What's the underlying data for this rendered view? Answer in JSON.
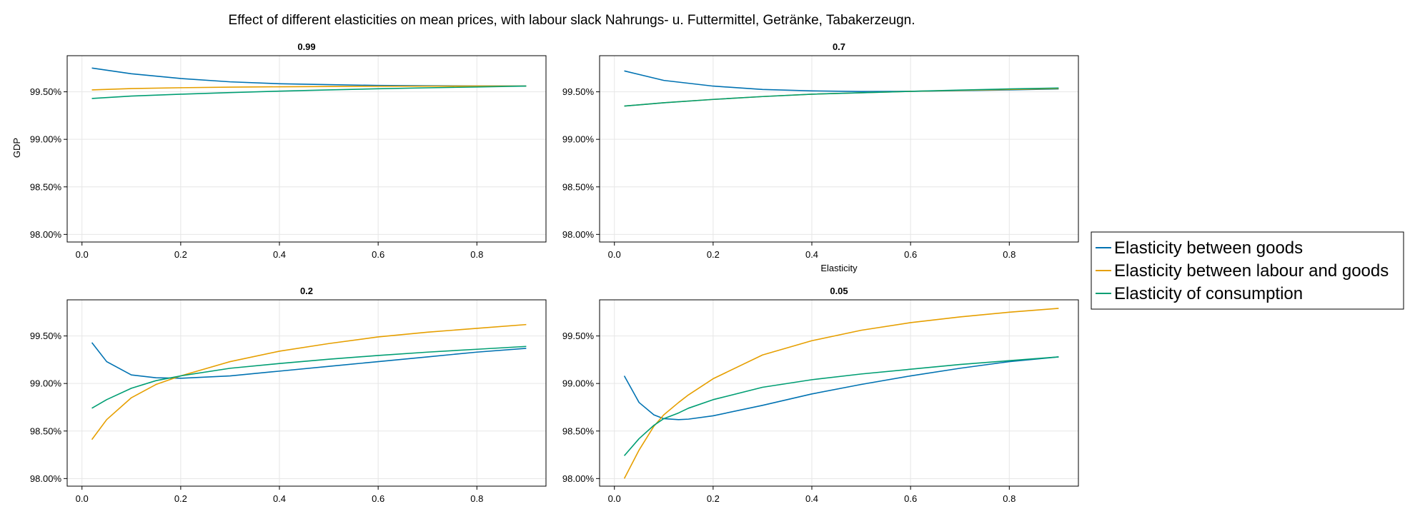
{
  "title": "Effect of different elasticities on mean prices, with labour slack Nahrungs- u. Futtermittel, Getränke, Tabakerzeugn.",
  "xlabel": "Elasticity",
  "ylabel": "GDP",
  "colors": {
    "goods": "#0072B2",
    "labour": "#E69F00",
    "consumption": "#009E73",
    "grid": "#e6e6e6",
    "axis": "#000000"
  },
  "legend": {
    "placement": "right",
    "entries": [
      {
        "label": "Elasticity between goods",
        "color": "#0072B2"
      },
      {
        "label": "Elasticity between labour and goods",
        "color": "#E69F00"
      },
      {
        "label": "Elasticity of consumption",
        "color": "#009E73"
      }
    ]
  },
  "chart_data": [
    {
      "type": "line",
      "title": "0.99",
      "x": [
        0.02,
        0.1,
        0.2,
        0.3,
        0.4,
        0.5,
        0.6,
        0.7,
        0.8,
        0.9
      ],
      "xticks": [
        "0.0",
        "0.2",
        "0.4",
        "0.6",
        "0.8"
      ],
      "yticks": [
        "98.00%",
        "98.50%",
        "99.00%",
        "99.50%"
      ],
      "xlim": [
        -0.03,
        0.94
      ],
      "ylim": [
        97.92,
        99.88
      ],
      "grid": true,
      "series": [
        {
          "name": "Elasticity between goods",
          "values": [
            99.75,
            99.69,
            99.64,
            99.605,
            99.585,
            99.575,
            99.567,
            99.563,
            99.561,
            99.56
          ]
        },
        {
          "name": "Elasticity between labour and goods",
          "values": [
            99.52,
            99.534,
            99.543,
            99.549,
            99.553,
            99.556,
            99.558,
            99.559,
            99.56,
            99.56
          ]
        },
        {
          "name": "Elasticity of consumption",
          "values": [
            99.43,
            99.455,
            99.475,
            99.492,
            99.507,
            99.52,
            99.532,
            99.542,
            99.551,
            99.56
          ]
        }
      ]
    },
    {
      "type": "line",
      "title": "0.7",
      "x": [
        0.02,
        0.1,
        0.2,
        0.3,
        0.4,
        0.5,
        0.6,
        0.7,
        0.8,
        0.9
      ],
      "xticks": [
        "0.0",
        "0.2",
        "0.4",
        "0.6",
        "0.8"
      ],
      "yticks": [
        "98.00%",
        "98.50%",
        "99.00%",
        "99.50%"
      ],
      "xlim": [
        -0.03,
        0.94
      ],
      "ylim": [
        97.92,
        99.88
      ],
      "grid": true,
      "series": [
        {
          "name": "Elasticity between goods",
          "values": [
            99.72,
            99.62,
            99.56,
            99.525,
            99.51,
            99.503,
            99.505,
            99.512,
            99.52,
            99.53
          ]
        },
        {
          "name": "Elasticity between labour and goods",
          "values": [
            99.35,
            99.385,
            99.42,
            99.45,
            99.475,
            99.49,
            99.505,
            99.515,
            99.525,
            99.535
          ]
        },
        {
          "name": "Elasticity of consumption",
          "values": [
            99.35,
            99.385,
            99.42,
            99.45,
            99.475,
            99.49,
            99.505,
            99.518,
            99.53,
            99.54
          ]
        }
      ]
    },
    {
      "type": "line",
      "title": "0.2",
      "x": [
        0.02,
        0.05,
        0.1,
        0.15,
        0.2,
        0.3,
        0.4,
        0.5,
        0.6,
        0.7,
        0.8,
        0.9
      ],
      "xticks": [
        "0.0",
        "0.2",
        "0.4",
        "0.6",
        "0.8"
      ],
      "yticks": [
        "98.00%",
        "98.50%",
        "99.00%",
        "99.50%"
      ],
      "xlim": [
        -0.03,
        0.94
      ],
      "ylim": [
        97.92,
        99.88
      ],
      "grid": true,
      "series": [
        {
          "name": "Elasticity between goods",
          "values": [
            99.43,
            99.23,
            99.09,
            99.06,
            99.055,
            99.08,
            99.13,
            99.18,
            99.23,
            99.28,
            99.33,
            99.37
          ]
        },
        {
          "name": "Elasticity between labour and goods",
          "values": [
            98.41,
            98.62,
            98.85,
            98.99,
            99.08,
            99.23,
            99.34,
            99.42,
            99.49,
            99.54,
            99.58,
            99.62
          ]
        },
        {
          "name": "Elasticity of consumption",
          "values": [
            98.74,
            98.83,
            98.95,
            99.03,
            99.08,
            99.16,
            99.21,
            99.255,
            99.295,
            99.33,
            99.36,
            99.39
          ]
        }
      ]
    },
    {
      "type": "line",
      "title": "0.05",
      "x": [
        0.02,
        0.05,
        0.08,
        0.1,
        0.13,
        0.15,
        0.2,
        0.3,
        0.4,
        0.5,
        0.6,
        0.7,
        0.8,
        0.9
      ],
      "xticks": [
        "0.0",
        "0.2",
        "0.4",
        "0.6",
        "0.8"
      ],
      "yticks": [
        "98.00%",
        "98.50%",
        "99.00%",
        "99.50%"
      ],
      "xlim": [
        -0.03,
        0.94
      ],
      "ylim": [
        97.92,
        99.88
      ],
      "grid": true,
      "series": [
        {
          "name": "Elasticity between goods",
          "values": [
            99.08,
            98.8,
            98.67,
            98.63,
            98.62,
            98.625,
            98.66,
            98.77,
            98.89,
            98.99,
            99.08,
            99.16,
            99.23,
            99.28
          ]
        },
        {
          "name": "Elasticity between labour and goods",
          "values": [
            98.0,
            98.3,
            98.55,
            98.67,
            98.8,
            98.88,
            99.05,
            99.3,
            99.45,
            99.56,
            99.64,
            99.7,
            99.75,
            99.79
          ]
        },
        {
          "name": "Elasticity of consumption",
          "values": [
            98.24,
            98.42,
            98.56,
            98.63,
            98.69,
            98.74,
            98.83,
            98.96,
            99.04,
            99.1,
            99.15,
            99.2,
            99.24,
            99.28
          ]
        }
      ]
    }
  ]
}
